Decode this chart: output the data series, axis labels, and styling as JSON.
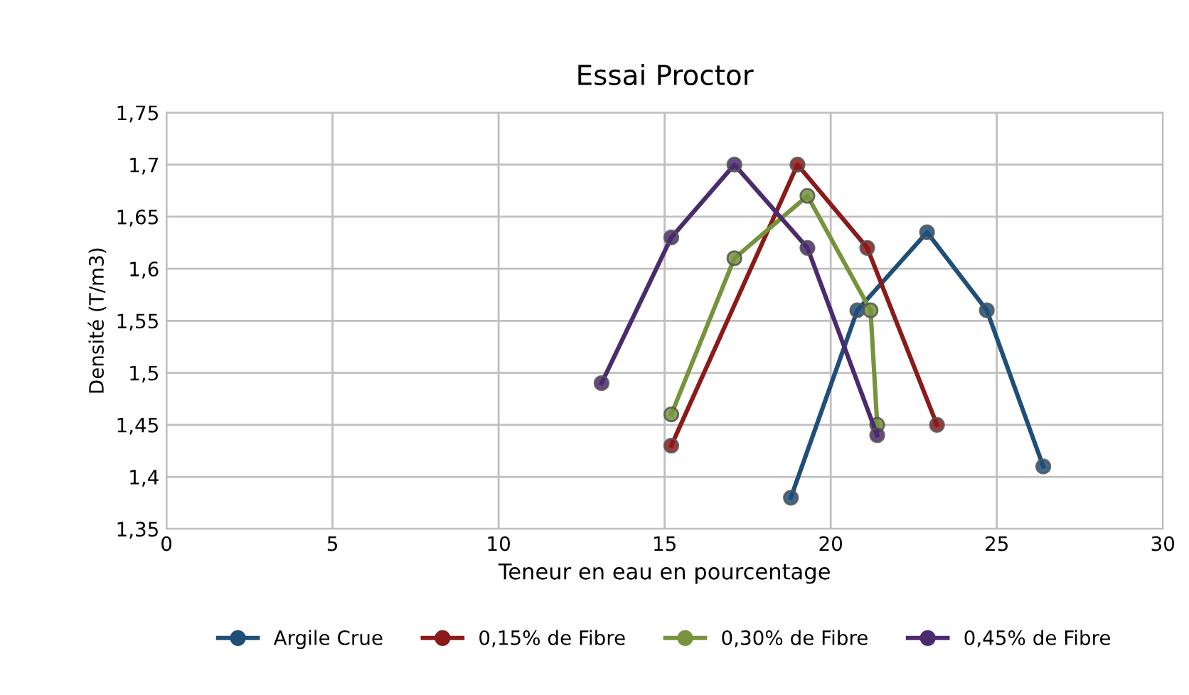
{
  "chart_data": {
    "type": "line",
    "title": "Essai Proctor",
    "xlabel": "Teneur en eau en pourcentage",
    "ylabel": "Densité (T/m3)",
    "xlim": [
      0,
      30
    ],
    "xticks": [
      0,
      5,
      10,
      15,
      20,
      25,
      30
    ],
    "ylim": [
      1.35,
      1.75
    ],
    "yticks": [
      {
        "value": 1.35,
        "label": "1,35"
      },
      {
        "value": 1.4,
        "label": "1,4"
      },
      {
        "value": 1.45,
        "label": "1,45"
      },
      {
        "value": 1.5,
        "label": "1,5"
      },
      {
        "value": 1.55,
        "label": "1,55"
      },
      {
        "value": 1.6,
        "label": "1,6"
      },
      {
        "value": 1.65,
        "label": "1,65"
      },
      {
        "value": 1.7,
        "label": "1,7"
      },
      {
        "value": 1.75,
        "label": "1,75"
      }
    ],
    "grid": true,
    "legend": "bottom",
    "marker": "circle",
    "line_style": "solid",
    "series": [
      {
        "name": "Argile Crue",
        "color": "#1f4e79",
        "x": [
          18.8,
          20.8,
          22.9,
          24.7,
          26.4
        ],
        "values": [
          1.38,
          1.56,
          1.635,
          1.56,
          1.41
        ]
      },
      {
        "name": "0,15% de Fibre",
        "color": "#8b1a1a",
        "x": [
          15.2,
          19.0,
          21.1,
          23.2
        ],
        "values": [
          1.43,
          1.7,
          1.62,
          1.45
        ]
      },
      {
        "name": "0,30% de Fibre",
        "color": "#77933c",
        "x": [
          15.2,
          17.1,
          19.3,
          21.2,
          21.4
        ],
        "values": [
          1.46,
          1.61,
          1.67,
          1.56,
          1.45
        ]
      },
      {
        "name": "0,45% de Fibre",
        "color": "#4b2a6e",
        "x": [
          13.1,
          15.2,
          17.1,
          19.3,
          21.4
        ],
        "values": [
          1.49,
          1.63,
          1.7,
          1.62,
          1.44
        ]
      }
    ]
  }
}
